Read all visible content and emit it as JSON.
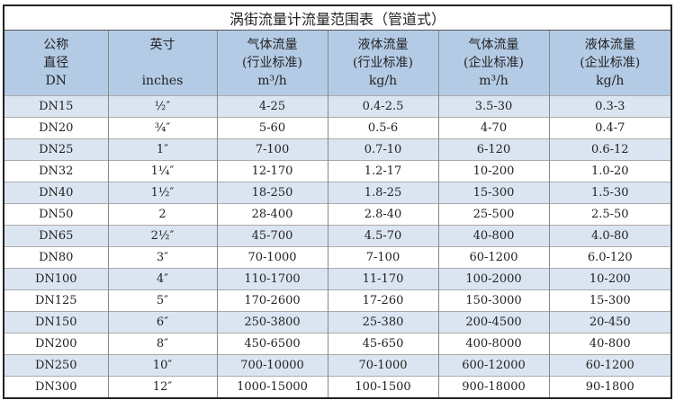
{
  "title": "涡街流量计流量范围表（管道式）",
  "headers": [
    [
      "公称",
      "直径",
      "DN"
    ],
    [
      "英寸",
      "",
      "inches"
    ],
    [
      "气体流量",
      "(行业标准)",
      "m³/h"
    ],
    [
      "液体流量",
      "(行业标准)",
      "kg/h"
    ],
    [
      "气体流量",
      "(企业标准)",
      "m³/h"
    ],
    [
      "液体流量",
      "(企业标准)",
      "kg/h"
    ]
  ],
  "rows": [
    [
      "DN15",
      "½″",
      "4-25",
      "0.4-2.5",
      "3.5-30",
      "0.3-3"
    ],
    [
      "DN20",
      "¾″",
      "5-60",
      "0.5-6",
      "4-70",
      "0.4-7"
    ],
    [
      "DN25",
      "1″",
      "7-100",
      "0.7-10",
      "6-120",
      "0.6-12"
    ],
    [
      "DN32",
      "1¼″",
      "12-170",
      "1.2-17",
      "10-200",
      "1.0-20"
    ],
    [
      "DN40",
      "1½″",
      "18-250",
      "1.8-25",
      "15-300",
      "1.5-30"
    ],
    [
      "DN50",
      "2",
      "28-400",
      "2.8-40",
      "25-500",
      "2.5-50"
    ],
    [
      "DN65",
      "2½″",
      "45-700",
      "4.5-70",
      "40-800",
      "4.0-80"
    ],
    [
      "DN80",
      "3″",
      "70-1000",
      "7-100",
      "60-1200",
      "6.0-120"
    ],
    [
      "DN100",
      "4″",
      "110-1700",
      "11-170",
      "100-2000",
      "10-200"
    ],
    [
      "DN125",
      "5″",
      "170-2600",
      "17-260",
      "150-3000",
      "15-300"
    ],
    [
      "DN150",
      "6″",
      "250-3800",
      "25-380",
      "200-4500",
      "20-450"
    ],
    [
      "DN200",
      "8″",
      "450-6500",
      "45-650",
      "400-8000",
      "40-800"
    ],
    [
      "DN250",
      "10″",
      "700-10000",
      "70-1000",
      "600-12000",
      "60-1200"
    ],
    [
      "DN300",
      "12″",
      "1000-15000",
      "100-1500",
      "900-18000",
      "90-1800"
    ]
  ],
  "colors": {
    "header_bg": "#b4cbe5",
    "row_alt_bg": "#dbe5f2",
    "border": "#222222"
  }
}
